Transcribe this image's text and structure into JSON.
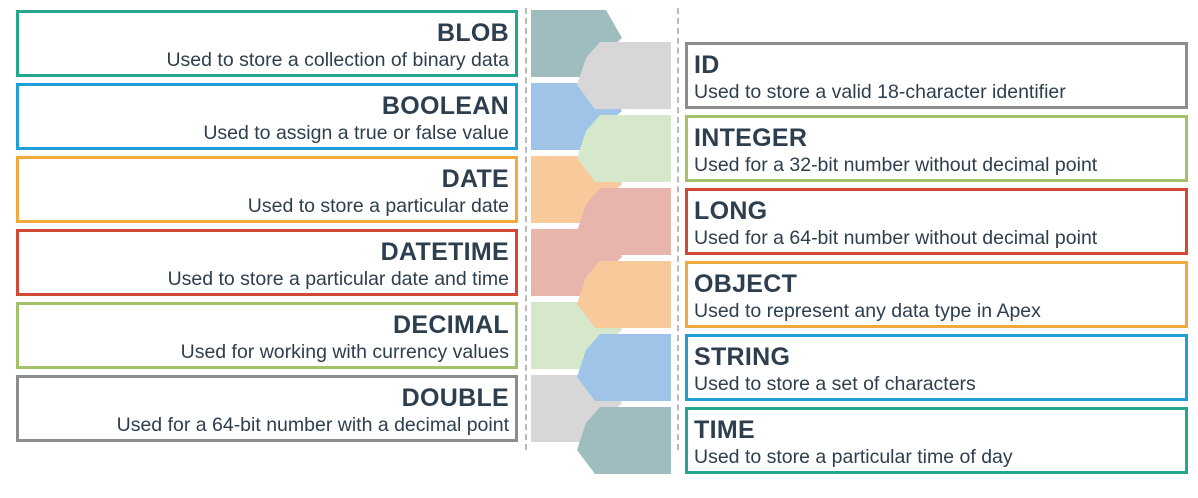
{
  "left_types": [
    {
      "name": "BLOB",
      "desc": "Used to store a collection of binary data",
      "border": "#23a58e",
      "shape": "#9fbcbf"
    },
    {
      "name": "BOOLEAN",
      "desc": "Used to assign a true or false value",
      "border": "#1da0d8",
      "shape": "#9fc4e8"
    },
    {
      "name": "DATE",
      "desc": "Used to store a particular date",
      "border": "#f0a93a",
      "shape": "#f8c99a"
    },
    {
      "name": "DATETIME",
      "desc": "Used to store a particular date and time",
      "border": "#d24a36",
      "shape": "#e7b5ab"
    },
    {
      "name": "DECIMAL",
      "desc": "Used for working with currency values",
      "border": "#a4c26a",
      "shape": "#d6e8cc"
    },
    {
      "name": "DOUBLE",
      "desc": "Used for a 64-bit number with a decimal point",
      "border": "#8d8d8d",
      "shape": "#d7d7d7"
    }
  ],
  "right_types": [
    {
      "name": "ID",
      "desc": "Used to store a valid 18-character identifier",
      "border": "#8d8d8d",
      "shape": "#d7d7d7"
    },
    {
      "name": "INTEGER",
      "desc": "Used for a 32-bit number without decimal point",
      "border": "#a4c26a",
      "shape": "#d6e8cc"
    },
    {
      "name": "LONG",
      "desc": "Used for a 64-bit number without decimal point",
      "border": "#d24a36",
      "shape": "#e7b5ab"
    },
    {
      "name": "OBJECT",
      "desc": "Used to represent any data type in Apex",
      "border": "#f0a93a",
      "shape": "#f8c99a"
    },
    {
      "name": "STRING",
      "desc": "Used to store a set of characters",
      "border": "#1da0d8",
      "shape": "#9fc4e8"
    },
    {
      "name": "TIME",
      "desc": "Used to store a particular time of day",
      "border": "#23a58e",
      "shape": "#9fbcbf"
    }
  ]
}
